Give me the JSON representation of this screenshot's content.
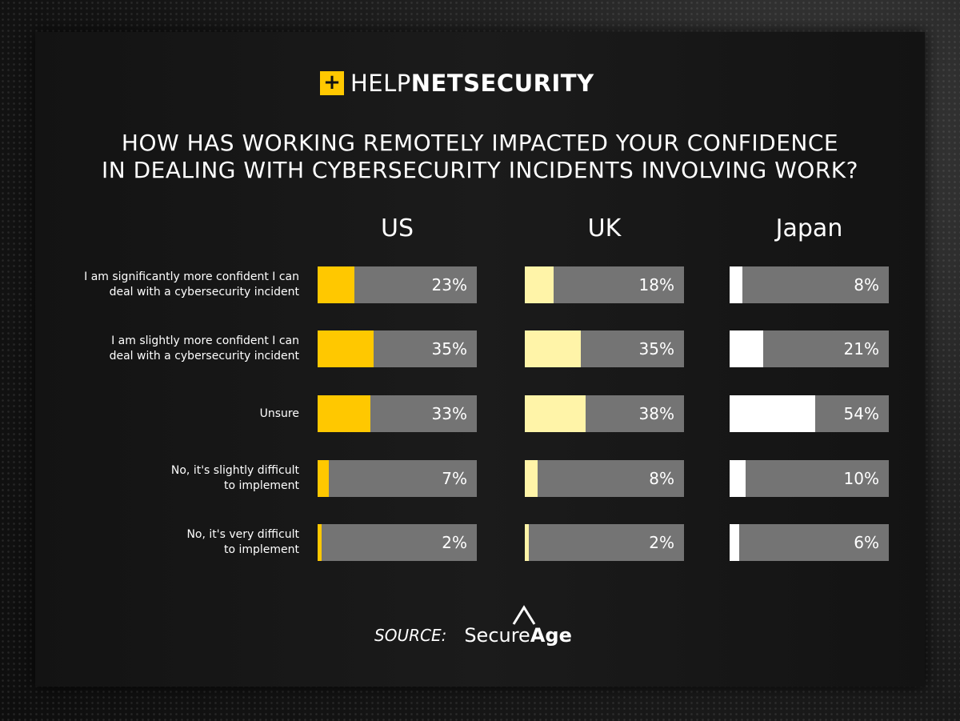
{
  "logo": {
    "box": "+",
    "light": "HELP",
    "bold": "NETSECURITY",
    "accent": "#ffc800"
  },
  "title": {
    "line1": "HOW HAS WORKING REMOTELY IMPACTED YOUR CONFIDENCE",
    "line2": "IN DEALING WITH CYBERSECURITY INCIDENTS INVOLVING WORK?"
  },
  "source": {
    "label": "SOURCE:",
    "brand_light": "Secure",
    "brand_bold": "Age"
  },
  "chart_data": {
    "type": "bar",
    "orientation": "horizontal",
    "categories": [
      [
        "I am significantly more confident I can",
        "deal with a cybersecurity incident"
      ],
      [
        "I am slightly more confident I can",
        "deal with a cybersecurity incident"
      ],
      [
        "Unsure"
      ],
      [
        "No, it's slightly difficult",
        "to implement"
      ],
      [
        "No, it's very difficult",
        "to implement"
      ]
    ],
    "xlim": [
      0,
      100
    ],
    "series": [
      {
        "name": "US",
        "color": "#ffc800",
        "values": [
          23,
          35,
          33,
          7,
          2
        ],
        "labels": [
          "23%",
          "35%",
          "33%",
          "7%",
          "2%"
        ]
      },
      {
        "name": "UK",
        "color": "#fff4a8",
        "values": [
          18,
          35,
          38,
          8,
          2
        ],
        "labels": [
          "18%",
          "35%",
          "38%",
          "8%",
          "2%"
        ]
      },
      {
        "name": "Japan",
        "color": "#ffffff",
        "values": [
          8,
          21,
          54,
          10,
          6
        ],
        "labels": [
          "8%",
          "21%",
          "54%",
          "10%",
          "6%"
        ]
      }
    ],
    "track_color": "#747474"
  }
}
